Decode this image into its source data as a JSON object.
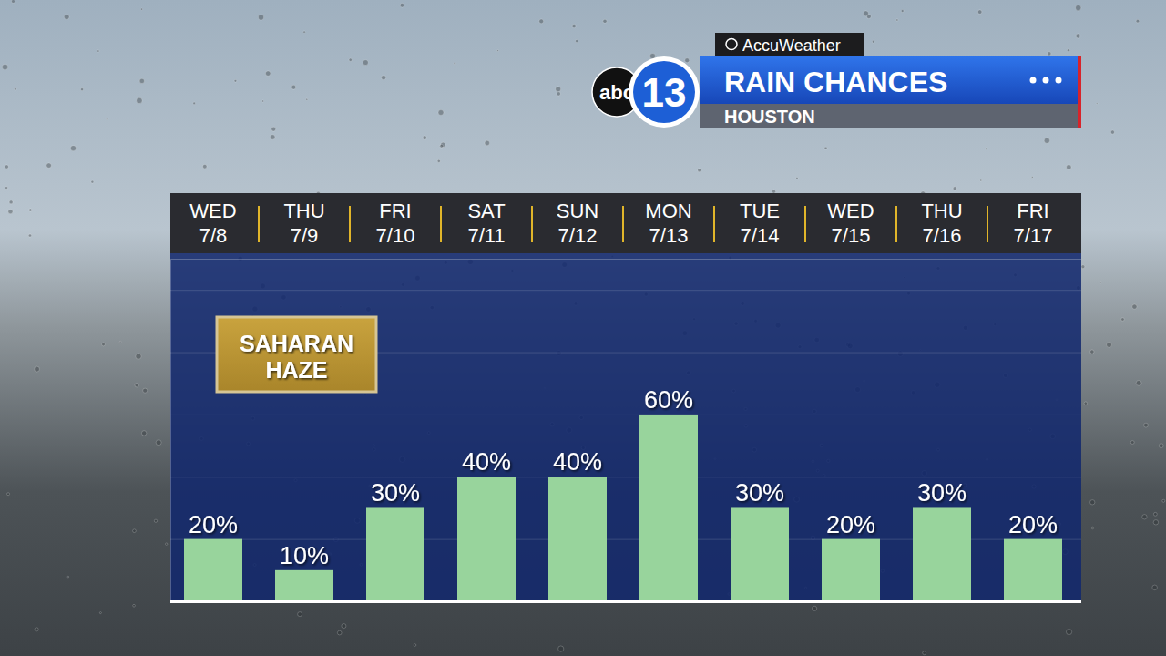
{
  "chart_data": {
    "type": "bar",
    "title": "RAIN CHANCES",
    "subtitle": "HOUSTON",
    "source": "AccuWeather",
    "logo": [
      "abc",
      "13"
    ],
    "annotations": [
      "SAHARAN HAZE"
    ],
    "categories": [
      "WED 7/8",
      "THU 7/9",
      "FRI 7/10",
      "SAT 7/11",
      "SUN 7/12",
      "MON 7/13",
      "TUE 7/14",
      "WED 7/15",
      "THU 7/16",
      "FRI 7/17"
    ],
    "values": [
      20,
      10,
      30,
      40,
      40,
      60,
      30,
      20,
      30,
      20
    ],
    "value_labels": [
      "20%",
      "10%",
      "30%",
      "40%",
      "40%",
      "60%",
      "30%",
      "20%",
      "30%",
      "20%"
    ],
    "color": "#98d49c",
    "ylim": [
      0,
      110
    ],
    "yticks": [
      0,
      20,
      40,
      60,
      80,
      100
    ],
    "grid": true,
    "tick_labels": "x",
    "data_labels": true
  }
}
